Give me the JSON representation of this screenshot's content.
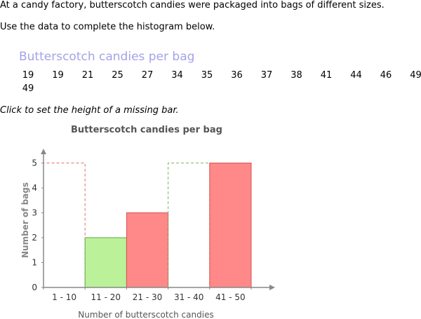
{
  "prompt": {
    "line1": "At a candy factory, butterscotch candies were packaged into bags of different sizes.",
    "line2": "Use the data to complete the histogram below."
  },
  "data_table": {
    "title": "Butterscotch candies per bag",
    "values": [
      "19",
      "19",
      "21",
      "25",
      "27",
      "34",
      "35",
      "36",
      "37",
      "38",
      "41",
      "44",
      "46",
      "49",
      "49"
    ]
  },
  "instruction": "Click to set the height of a missing bar.",
  "colors": {
    "filled_bar": "#ff8888",
    "filled_bar_stroke": "#d55555",
    "correct_bar": "#baf199",
    "correct_bar_stroke": "#66a844",
    "missing_red_dash": "#e07070",
    "missing_green_dash": "#7ab85a",
    "axis": "#888888",
    "title_purple": "#a3a3e8"
  },
  "chart_data": {
    "type": "bar",
    "title": "Butterscotch candies per bag",
    "xlabel": "Number of butterscotch candies",
    "ylabel": "Number of bags",
    "ylim": [
      0,
      5
    ],
    "yticks": [
      "0",
      "1",
      "2",
      "3",
      "4",
      "5"
    ],
    "categories": [
      "1 - 10",
      "11 - 20",
      "21 - 30",
      "31 - 40",
      "41 - 50"
    ],
    "values": [
      0,
      2,
      3,
      0,
      5
    ],
    "bar_states": [
      "placeholder-red",
      "correct-green",
      "given",
      "placeholder-green",
      "given"
    ],
    "placeholder_level": 5
  }
}
